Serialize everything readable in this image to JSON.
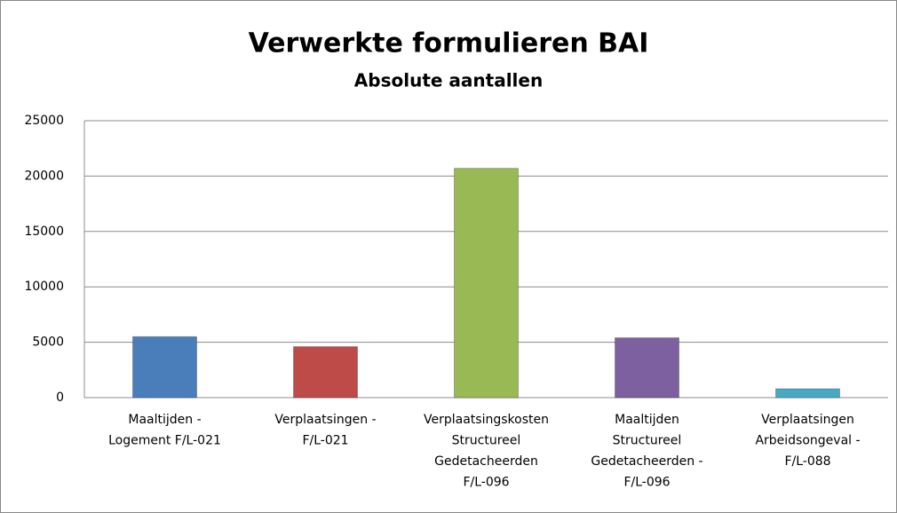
{
  "chart_data": {
    "type": "bar",
    "title": "Verwerkte formulieren BAI",
    "subtitle": "Absolute aantallen",
    "categories": [
      [
        "Maaltijden -",
        "Logement F/L-021"
      ],
      [
        "Verplaatsingen -",
        "F/L-021"
      ],
      [
        "Verplaatsingskosten",
        "Structureel",
        "Gedetacheerden",
        "F/L-096"
      ],
      [
        "Maaltijden",
        "Structureel",
        "Gedetacheerden -",
        "F/L-096"
      ],
      [
        "Verplaatsingen",
        "Arbeidsongeval -",
        "F/L-088"
      ]
    ],
    "values": [
      5500,
      4600,
      20700,
      5400,
      800
    ],
    "colors": [
      "#4a7ebb",
      "#be4b48",
      "#98b954",
      "#7d60a0",
      "#46aac5"
    ],
    "ylim": [
      0,
      25000
    ],
    "yticks": [
      0,
      5000,
      10000,
      15000,
      20000,
      25000
    ],
    "grid": true
  }
}
